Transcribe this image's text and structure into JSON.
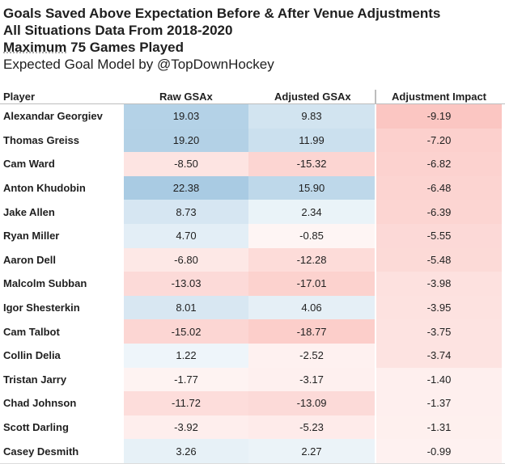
{
  "header": {
    "line1": "Goals Saved Above Expectation Before & After Venue Adjustments",
    "line2": "All Situations Data From 2018-2020",
    "line3_emph": "Maximum",
    "line3_rest": " 75 Games Played",
    "line4": "Expected Goal Model by @TopDownHockey"
  },
  "columns": {
    "player": "Player",
    "raw": "Raw GSAx",
    "adjusted": "Adjusted GSAx",
    "impact": "Adjustment Impact"
  },
  "chart_data": {
    "type": "table",
    "columns": [
      "Player",
      "Raw GSAx",
      "Adjusted GSAx",
      "Adjustment Impact"
    ],
    "rows": [
      {
        "player": "Alexandar Georgiev",
        "raw": "19.03",
        "adjusted": "9.83",
        "impact": "-9.19"
      },
      {
        "player": "Thomas Greiss",
        "raw": "19.20",
        "adjusted": "11.99",
        "impact": "-7.20"
      },
      {
        "player": "Cam Ward",
        "raw": "-8.50",
        "adjusted": "-15.32",
        "impact": "-6.82"
      },
      {
        "player": "Anton Khudobin",
        "raw": "22.38",
        "adjusted": "15.90",
        "impact": "-6.48"
      },
      {
        "player": "Jake Allen",
        "raw": "8.73",
        "adjusted": "2.34",
        "impact": "-6.39"
      },
      {
        "player": "Ryan Miller",
        "raw": "4.70",
        "adjusted": "-0.85",
        "impact": "-5.55"
      },
      {
        "player": "Aaron Dell",
        "raw": "-6.80",
        "adjusted": "-12.28",
        "impact": "-5.48"
      },
      {
        "player": "Malcolm Subban",
        "raw": "-13.03",
        "adjusted": "-17.01",
        "impact": "-3.98"
      },
      {
        "player": "Igor Shesterkin",
        "raw": "8.01",
        "adjusted": "4.06",
        "impact": "-3.95"
      },
      {
        "player": "Cam Talbot",
        "raw": "-15.02",
        "adjusted": "-18.77",
        "impact": "-3.75"
      },
      {
        "player": "Collin Delia",
        "raw": "1.22",
        "adjusted": "-2.52",
        "impact": "-3.74"
      },
      {
        "player": "Tristan Jarry",
        "raw": "-1.77",
        "adjusted": "-3.17",
        "impact": "-1.40"
      },
      {
        "player": "Chad Johnson",
        "raw": "-11.72",
        "adjusted": "-13.09",
        "impact": "-1.37"
      },
      {
        "player": "Scott Darling",
        "raw": "-3.92",
        "adjusted": "-5.23",
        "impact": "-1.31"
      },
      {
        "player": "Casey Desmith",
        "raw": "3.26",
        "adjusted": "2.27",
        "impact": "-0.99"
      }
    ],
    "color_scale": {
      "positive": "#a9cbe3",
      "negative": "#fbc6c2",
      "neutral": "#ffffff"
    }
  }
}
